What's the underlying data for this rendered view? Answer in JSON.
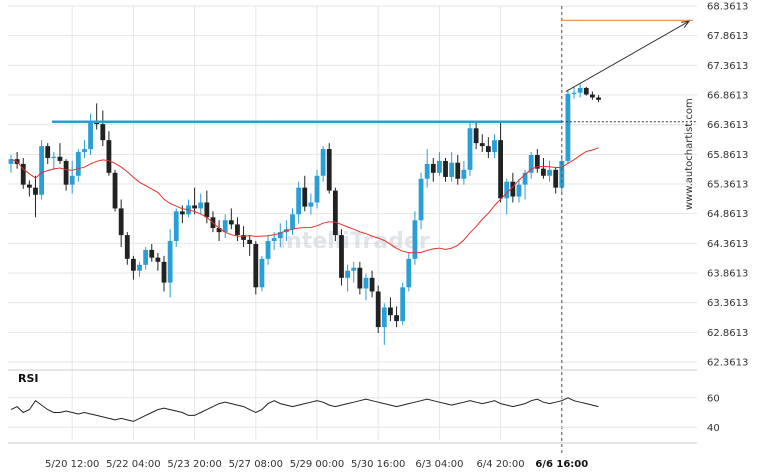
{
  "chart_data": {
    "type": "candlestick",
    "y_ticks": [
      "68.3613",
      "67.8613",
      "67.3613",
      "66.8613",
      "66.3613",
      "65.8613",
      "65.3613",
      "64.8613",
      "64.3613",
      "63.8613",
      "63.3613",
      "62.8613",
      "62.3613"
    ],
    "y_tick_values": [
      68.3613,
      67.8613,
      67.3613,
      66.8613,
      66.3613,
      65.8613,
      65.3613,
      64.8613,
      64.3613,
      63.8613,
      63.3613,
      62.8613,
      62.3613
    ],
    "ylim": [
      62.3613,
      68.3613
    ],
    "x_ticks": [
      "5/20 12:00",
      "5/22 04:00",
      "5/23 20:00",
      "5/27 08:00",
      "5/29 00:00",
      "5/30 16:00",
      "6/3 04:00",
      "6/4 20:00",
      "6/6 16:00"
    ],
    "x_tick_index": [
      10,
      20,
      30,
      40,
      50,
      60,
      70,
      80,
      90
    ],
    "current_time_label": "6/6 16:00",
    "resistance_level": 66.41,
    "target_level": 68.12,
    "ohlc": [
      [
        65.7,
        65.85,
        65.55,
        65.78
      ],
      [
        65.78,
        65.9,
        65.62,
        65.7
      ],
      [
        65.7,
        65.8,
        65.28,
        65.35
      ],
      [
        65.35,
        65.42,
        65.15,
        65.3
      ],
      [
        65.3,
        65.5,
        64.8,
        65.18
      ],
      [
        65.18,
        66.1,
        65.1,
        66.0
      ],
      [
        66.0,
        66.05,
        65.7,
        65.8
      ],
      [
        65.8,
        65.9,
        65.6,
        65.82
      ],
      [
        65.82,
        66.05,
        65.7,
        65.75
      ],
      [
        65.75,
        65.78,
        65.25,
        65.35
      ],
      [
        65.35,
        65.75,
        65.2,
        65.5
      ],
      [
        65.5,
        65.95,
        65.4,
        65.9
      ],
      [
        65.9,
        66.1,
        65.8,
        65.95
      ],
      [
        65.95,
        66.55,
        65.85,
        66.42
      ],
      [
        66.42,
        66.72,
        66.28,
        66.37
      ],
      [
        66.37,
        66.6,
        66.0,
        66.1
      ],
      [
        66.1,
        66.25,
        65.5,
        65.55
      ],
      [
        65.55,
        65.6,
        64.9,
        64.95
      ],
      [
        64.95,
        65.1,
        64.3,
        64.5
      ],
      [
        64.5,
        64.55,
        64.0,
        64.1
      ],
      [
        64.1,
        64.15,
        63.75,
        63.9
      ],
      [
        63.9,
        64.05,
        63.8,
        64.0
      ],
      [
        64.0,
        64.3,
        63.92,
        64.25
      ],
      [
        64.25,
        64.35,
        64.05,
        64.12
      ],
      [
        64.12,
        64.2,
        63.9,
        64.05
      ],
      [
        64.05,
        64.15,
        63.55,
        63.7
      ],
      [
        63.7,
        64.6,
        63.45,
        64.4
      ],
      [
        64.4,
        64.95,
        64.3,
        64.9
      ],
      [
        64.9,
        65.0,
        64.7,
        64.85
      ],
      [
        64.85,
        65.1,
        64.8,
        65.0
      ],
      [
        65.0,
        65.3,
        64.85,
        64.95
      ],
      [
        64.95,
        65.2,
        64.85,
        65.05
      ],
      [
        65.05,
        65.25,
        64.7,
        64.8
      ],
      [
        64.8,
        64.9,
        64.55,
        64.62
      ],
      [
        64.62,
        64.75,
        64.4,
        64.55
      ],
      [
        64.55,
        64.85,
        64.45,
        64.75
      ],
      [
        64.75,
        64.95,
        64.6,
        64.68
      ],
      [
        64.68,
        64.8,
        64.4,
        64.5
      ],
      [
        64.5,
        64.65,
        64.3,
        64.42
      ],
      [
        64.42,
        64.5,
        64.15,
        64.35
      ],
      [
        64.35,
        64.4,
        63.5,
        63.62
      ],
      [
        63.62,
        64.15,
        63.55,
        64.1
      ],
      [
        64.1,
        64.5,
        64.0,
        64.4
      ],
      [
        64.4,
        64.55,
        64.25,
        64.45
      ],
      [
        64.45,
        64.7,
        64.3,
        64.55
      ],
      [
        64.55,
        64.75,
        64.4,
        64.6
      ],
      [
        64.6,
        64.95,
        64.5,
        64.85
      ],
      [
        64.85,
        65.4,
        64.7,
        65.3
      ],
      [
        65.3,
        65.5,
        64.9,
        64.98
      ],
      [
        64.98,
        65.2,
        64.85,
        65.05
      ],
      [
        65.05,
        65.6,
        64.95,
        65.5
      ],
      [
        65.5,
        66.0,
        65.4,
        65.95
      ],
      [
        65.95,
        66.05,
        65.2,
        65.25
      ],
      [
        65.25,
        65.3,
        64.4,
        64.5
      ],
      [
        64.5,
        64.6,
        63.65,
        63.78
      ],
      [
        63.78,
        64.0,
        63.55,
        63.9
      ],
      [
        63.9,
        64.05,
        63.7,
        63.95
      ],
      [
        63.95,
        64.05,
        63.5,
        63.6
      ],
      [
        63.6,
        63.85,
        63.4,
        63.78
      ],
      [
        63.78,
        63.9,
        63.45,
        63.55
      ],
      [
        63.55,
        63.65,
        62.85,
        62.95
      ],
      [
        62.95,
        63.35,
        62.65,
        63.28
      ],
      [
        63.28,
        63.45,
        63.05,
        63.15
      ],
      [
        63.15,
        63.3,
        62.95,
        63.05
      ],
      [
        63.05,
        63.7,
        62.98,
        63.62
      ],
      [
        63.62,
        64.2,
        63.55,
        64.1
      ],
      [
        64.1,
        64.9,
        64.0,
        64.75
      ],
      [
        64.75,
        65.55,
        64.6,
        65.45
      ],
      [
        65.45,
        65.95,
        65.3,
        65.7
      ],
      [
        65.7,
        65.8,
        65.4,
        65.55
      ],
      [
        65.55,
        65.9,
        65.5,
        65.75
      ],
      [
        65.75,
        65.8,
        65.4,
        65.48
      ],
      [
        65.48,
        65.9,
        65.4,
        65.72
      ],
      [
        65.72,
        65.85,
        65.35,
        65.45
      ],
      [
        65.45,
        65.75,
        65.35,
        65.6
      ],
      [
        65.6,
        66.4,
        65.5,
        66.3
      ],
      [
        66.3,
        66.4,
        65.95,
        66.05
      ],
      [
        66.05,
        66.2,
        65.9,
        66.0
      ],
      [
        66.0,
        66.15,
        65.8,
        65.9
      ],
      [
        65.9,
        66.2,
        65.8,
        66.1
      ],
      [
        66.1,
        66.4,
        65.05,
        65.12
      ],
      [
        65.12,
        65.45,
        64.85,
        65.4
      ],
      [
        65.4,
        65.55,
        65.05,
        65.15
      ],
      [
        65.15,
        65.45,
        65.05,
        65.35
      ],
      [
        65.35,
        65.6,
        65.1,
        65.55
      ],
      [
        65.55,
        65.9,
        65.45,
        65.85
      ],
      [
        65.85,
        65.95,
        65.55,
        65.62
      ],
      [
        65.62,
        65.8,
        65.45,
        65.5
      ],
      [
        65.5,
        65.75,
        65.4,
        65.6
      ],
      [
        65.6,
        65.65,
        65.2,
        65.3
      ],
      [
        65.3,
        65.85,
        65.2,
        65.75
      ],
      [
        65.75,
        66.95,
        65.7,
        66.88
      ],
      [
        66.88,
        67.0,
        66.8,
        66.9
      ],
      [
        66.9,
        67.05,
        66.82,
        66.98
      ],
      [
        66.98,
        67.0,
        66.85,
        66.87
      ],
      [
        66.87,
        66.92,
        66.78,
        66.82
      ],
      [
        66.82,
        66.86,
        66.74,
        66.78
      ]
    ],
    "rsi": [
      52,
      54,
      50,
      52,
      58,
      55,
      52,
      50,
      50,
      51,
      50,
      49,
      50,
      49,
      48,
      47,
      46,
      45,
      46,
      45,
      44,
      46,
      48,
      50,
      52,
      53,
      52,
      51,
      50,
      48,
      48,
      50,
      52,
      54,
      56,
      57,
      56,
      55,
      54,
      52,
      50,
      52,
      56,
      58,
      56,
      55,
      54,
      55,
      56,
      57,
      58,
      57,
      55,
      54,
      55,
      56,
      57,
      58,
      59,
      58,
      57,
      56,
      55,
      54,
      55,
      56,
      57,
      58,
      59,
      58,
      57,
      56,
      55,
      56,
      57,
      58,
      57,
      56,
      57,
      58,
      56,
      55,
      54,
      55,
      56,
      58,
      59,
      57,
      56,
      57,
      58,
      60,
      58,
      57,
      56,
      55,
      54
    ],
    "rsi_label": "RSI",
    "rsi_ticks": [
      "60",
      "40"
    ],
    "rsi_tick_values": [
      60,
      40
    ],
    "rsi_ylim": [
      30,
      70
    ]
  },
  "branding": {
    "watermark": "IntelliTrader",
    "side_watermark": "www.autochartist.com"
  },
  "colors": {
    "bull": "#2a9fd6",
    "bear": "#222222",
    "resistance": "#2a9fd6",
    "ma": "#e3322c",
    "target": "#e58a4a",
    "grid": "#e6e6e6"
  }
}
